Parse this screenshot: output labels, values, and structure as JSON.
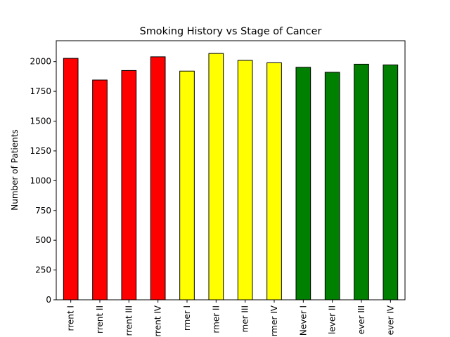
{
  "chart_data": {
    "type": "bar",
    "title": "Smoking History vs Stage of Cancer",
    "xlabel": "",
    "ylabel": "Number of Patients",
    "ylim": [
      0,
      2175
    ],
    "grid": false,
    "categories": [
      "Current I",
      "Current II",
      "Current III",
      "Current IV",
      "Former I",
      "Former II",
      "Former III",
      "Former IV",
      "Never I",
      "Never II",
      "Never III",
      "Never IV"
    ],
    "tick_labels": [
      "rrent I",
      "rrent II",
      "rrent III",
      "rrent IV",
      "rmer I",
      "rmer II",
      "mer III",
      "rmer IV",
      "Never I",
      "lever II",
      "ever III",
      "ever IV"
    ],
    "values": [
      2027,
      1845,
      1925,
      2040,
      1920,
      2068,
      2010,
      1990,
      1952,
      1910,
      1978,
      1972
    ],
    "bar_colors": [
      "#ff0000",
      "#ff0000",
      "#ff0000",
      "#ff0000",
      "#ffff00",
      "#ffff00",
      "#ffff00",
      "#ffff00",
      "#008000",
      "#008000",
      "#008000",
      "#008000"
    ],
    "edge_color": "#000000",
    "yticks": [
      0,
      250,
      500,
      750,
      1000,
      1250,
      1500,
      1750,
      2000
    ]
  }
}
